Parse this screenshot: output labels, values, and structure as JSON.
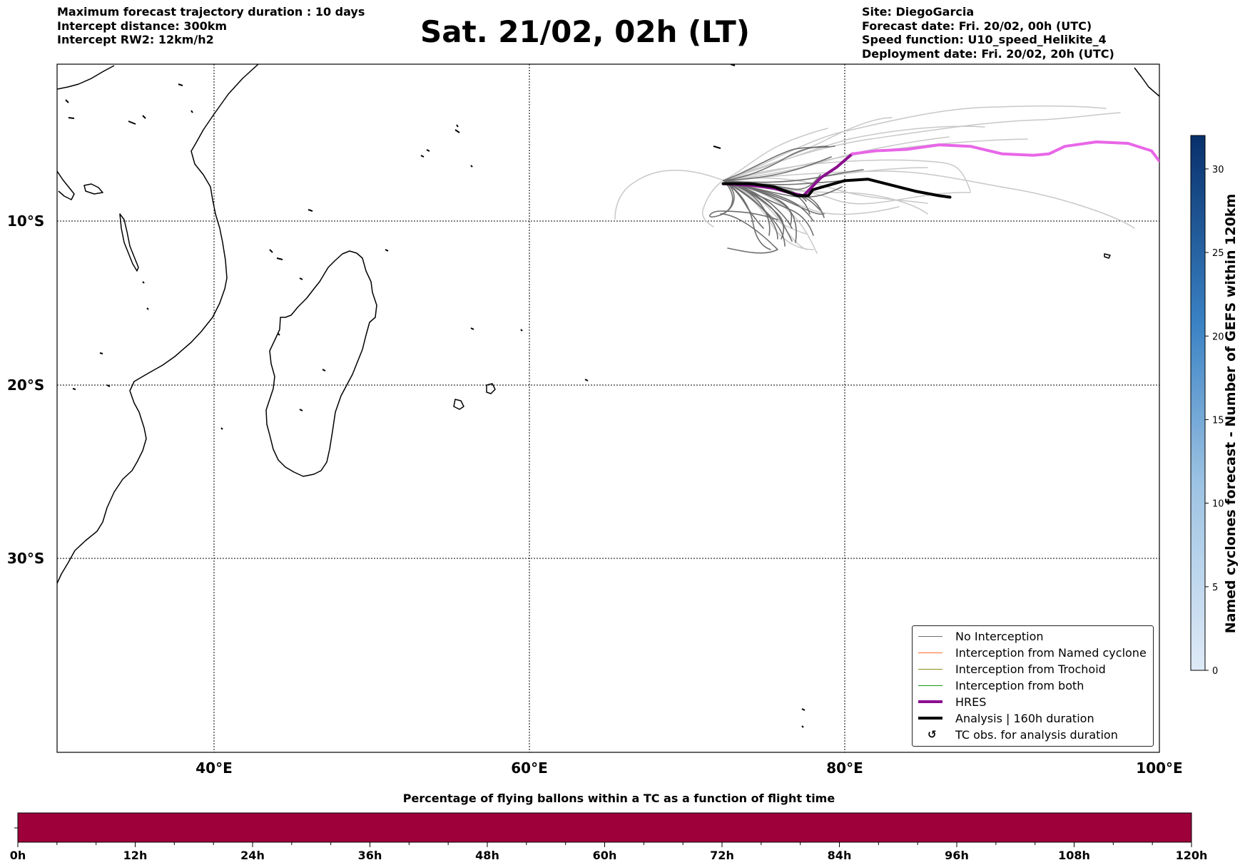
{
  "header": {
    "left_lines": [
      "Maximum forecast trajectory duration : 10 days",
      "Intercept distance: 300km",
      "Intercept RW2: 12km/h2"
    ],
    "title": "Sat. 21/02, 02h (LT)",
    "right_lines": [
      "Site: DiegoGarcia",
      "Forecast date: Fri. 20/02, 00h (UTC)",
      "Speed function: U10_speed_Helikite_4",
      "Deployment date: Fri. 20/02, 20h (UTC)"
    ]
  },
  "map": {
    "lat_labels": [
      "10°S",
      "20°S",
      "30°S"
    ],
    "lon_labels": [
      "40°E",
      "60°E",
      "80°E",
      "100°E"
    ],
    "lon_range": [
      30,
      100
    ],
    "lat_range": [
      -40.5,
      0.5
    ]
  },
  "legend": {
    "items": [
      {
        "label": "No Interception",
        "color": "#707070",
        "kind": "line",
        "width": 1
      },
      {
        "label": "Interception from Named cyclone",
        "color": "#ff6a2a",
        "kind": "line",
        "width": 1
      },
      {
        "label": "Interception from Trochoid",
        "color": "#8b8b1a",
        "kind": "line",
        "width": 1
      },
      {
        "label": "Interception from both",
        "color": "#1a9a1a",
        "kind": "line",
        "width": 1
      },
      {
        "label": "HRES",
        "color": "#8b0f8f",
        "kind": "line",
        "width": 4
      },
      {
        "label": "Analysis | 160h duration",
        "color": "#000000",
        "kind": "line",
        "width": 4
      },
      {
        "label": "TC obs. for analysis duration",
        "color": "#000000",
        "kind": "symbol",
        "symbol": "↺"
      }
    ]
  },
  "colorbar": {
    "label": "Named cyclones forecast - Number of GEFS within 120km",
    "ticks": [
      "0",
      "5",
      "10",
      "15",
      "20",
      "25",
      "30"
    ],
    "color_low": "#dbe8f6",
    "color_high": "#08306b"
  },
  "timeline": {
    "title": "Percentage of flying ballons within a TC as a function of flight time",
    "ticks": [
      "0h",
      "12h",
      "24h",
      "36h",
      "48h",
      "60h",
      "72h",
      "84h",
      "96h",
      "108h",
      "120h"
    ],
    "bar_color": "#9e003a"
  },
  "tracks": {
    "hres": [
      [
        72.3,
        -7.5
      ],
      [
        74,
        -7.6
      ],
      [
        75.5,
        -7.8
      ],
      [
        76.5,
        -8.1
      ],
      [
        77.4,
        -8.3
      ],
      [
        78.5,
        -7.1
      ],
      [
        79.5,
        -6.4
      ],
      [
        80.5,
        -5.5
      ]
    ],
    "hres_future": [
      [
        80.5,
        -5.5
      ],
      [
        82,
        -5.3
      ],
      [
        84,
        -5.2
      ],
      [
        86,
        -4.9
      ],
      [
        88,
        -5.0
      ],
      [
        90,
        -5.5
      ],
      [
        92,
        -5.6
      ],
      [
        93,
        -5.5
      ],
      [
        94,
        -5.0
      ],
      [
        96,
        -4.7
      ],
      [
        98,
        -4.8
      ],
      [
        99.5,
        -5.3
      ],
      [
        100,
        -6.0
      ]
    ],
    "analysis": [
      [
        72.3,
        -7.5
      ],
      [
        74,
        -7.5
      ],
      [
        75.5,
        -7.7
      ],
      [
        77,
        -8.3
      ],
      [
        77.7,
        -8.3
      ],
      [
        78,
        -7.9
      ],
      [
        79,
        -7.6
      ],
      [
        80,
        -7.3
      ],
      [
        81.5,
        -7.2
      ],
      [
        83,
        -7.6
      ],
      [
        84.5,
        -8.0
      ],
      [
        86,
        -8.3
      ],
      [
        86.7,
        -8.4
      ]
    ]
  }
}
